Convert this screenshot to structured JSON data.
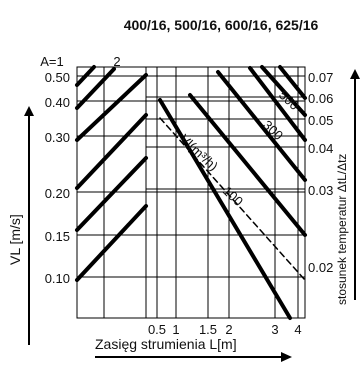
{
  "chart_data": {
    "type": "line",
    "title": "400/16, 500/16, 600/16, 625/16",
    "xlabel": "Zasięg strumienia L[m]",
    "ylabel_left": "VL [m/s]",
    "ylabel_right": "stosunek temperatur ΔtL/Δtz",
    "x_ticks": [
      "0.5",
      "1",
      "1.5",
      "2",
      "3",
      "4"
    ],
    "y_left_ticks": [
      "0.10",
      "0.15",
      "0.20",
      "0.30",
      "0.40",
      "0.50"
    ],
    "y_right_ticks": [
      "0.02",
      "0.03",
      "0.04",
      "0.05",
      "0.06",
      "0.07"
    ],
    "a_labels": [
      "A=1",
      "2"
    ],
    "vl_label": "Vl(m³/h)",
    "series_labels": [
      "100",
      "300",
      "500"
    ],
    "colors": {
      "line": "#000000",
      "grid": "#000000",
      "background": "#ffffff"
    }
  }
}
